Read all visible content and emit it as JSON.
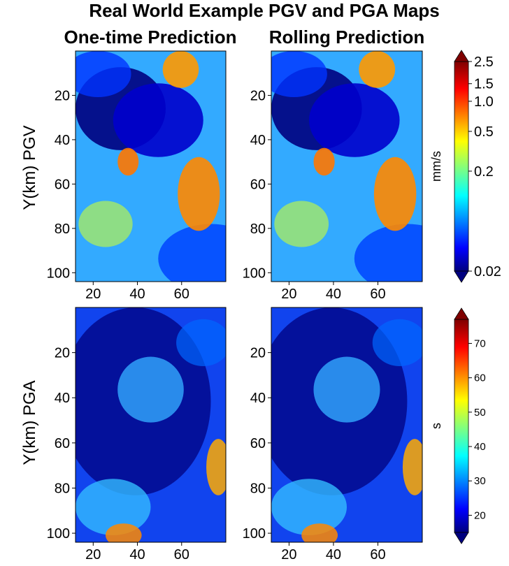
{
  "figure": {
    "title": "Real World Example PGV and PGA Maps",
    "col_titles": [
      "One-time Prediction",
      "Rolling Prediction"
    ],
    "row_labels": [
      "Y(km) PGV",
      "Y(km) PGA"
    ]
  },
  "chart_data": [
    {
      "type": "heatmap",
      "title": "One-time Prediction",
      "ylabel": "Y(km) PGV",
      "x_ticks": [
        20,
        40,
        60
      ],
      "y_ticks": [
        20,
        40,
        60,
        80,
        100
      ],
      "xlim": [
        12,
        80
      ],
      "ylim": [
        104,
        0
      ],
      "colormap": "jet",
      "colorbar_ref": 0
    },
    {
      "type": "heatmap",
      "title": "Rolling Prediction",
      "ylabel": "",
      "x_ticks": [
        20,
        40,
        60
      ],
      "y_ticks": [
        20,
        40,
        60,
        80,
        100
      ],
      "xlim": [
        12,
        80
      ],
      "ylim": [
        104,
        0
      ],
      "colormap": "jet",
      "colorbar_ref": 0
    },
    {
      "type": "heatmap",
      "title": "",
      "ylabel": "Y(km) PGA",
      "x_ticks": [
        20,
        40,
        60
      ],
      "y_ticks": [
        20,
        40,
        60,
        80,
        100
      ],
      "xlim": [
        12,
        80
      ],
      "ylim": [
        104,
        0
      ],
      "colormap": "jet",
      "colorbar_ref": 1
    },
    {
      "type": "heatmap",
      "title": "",
      "ylabel": "",
      "x_ticks": [
        20,
        40,
        60
      ],
      "y_ticks": [
        20,
        40,
        60,
        80,
        100
      ],
      "xlim": [
        12,
        80
      ],
      "ylim": [
        104,
        0
      ],
      "colormap": "jet",
      "colorbar_ref": 1
    }
  ],
  "colorbars": [
    {
      "label": "mm/s",
      "scale": "log",
      "range": [
        0.02,
        2.5
      ],
      "ticks": [
        0.02,
        0.2,
        0.5,
        1.0,
        1.5,
        2.5
      ],
      "tick_labels": [
        "0.02",
        "0.2",
        "0.5",
        "1.0",
        "1.5",
        "2.5"
      ]
    },
    {
      "label": "s",
      "scale": "linear",
      "range": [
        15,
        77
      ],
      "ticks": [
        20,
        30,
        40,
        50,
        60,
        70
      ],
      "tick_labels": [
        "20",
        "30",
        "40",
        "50",
        "60",
        "70"
      ]
    }
  ]
}
